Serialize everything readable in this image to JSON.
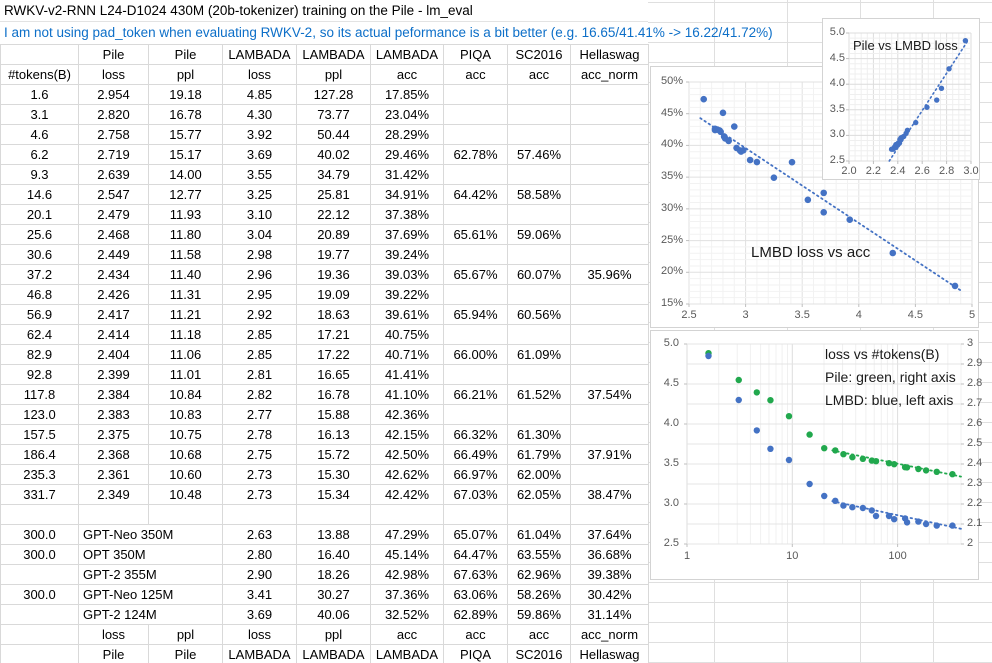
{
  "title": "RWKV-v2-RNN L24-D1024 430M (20b-tokenizer) training on the Pile - lm_eval",
  "note": "I am not using pad_token when evaluating RWKV-2, so its actual peformance is a bit better (e.g. 16.65/41.41% -> 16.22/41.72%)",
  "colors": {
    "note_blue": "#0d6fc8",
    "dot_blue": "#4472c4",
    "dot_green": "#21a84d",
    "cell_border": "#d9d9d9",
    "tick_text": "#595959"
  },
  "table": {
    "col_groups": [
      "",
      "Pile",
      "Pile",
      "LAMBADA",
      "LAMBADA",
      "LAMBADA",
      "PIQA",
      "SC2016",
      "Hellaswag"
    ],
    "col_subs": [
      "#tokens(B)",
      "loss",
      "ppl",
      "loss",
      "ppl",
      "acc",
      "acc",
      "acc",
      "acc_norm"
    ],
    "rows": [
      [
        "1.6",
        "2.954",
        "19.18",
        "4.85",
        "127.28",
        "17.85%",
        "",
        "",
        ""
      ],
      [
        "3.1",
        "2.820",
        "16.78",
        "4.30",
        "73.77",
        "23.04%",
        "",
        "",
        ""
      ],
      [
        "4.6",
        "2.758",
        "15.77",
        "3.92",
        "50.44",
        "28.29%",
        "",
        "",
        ""
      ],
      [
        "6.2",
        "2.719",
        "15.17",
        "3.69",
        "40.02",
        "29.46%",
        "62.78%",
        "57.46%",
        ""
      ],
      [
        "9.3",
        "2.639",
        "14.00",
        "3.55",
        "34.79",
        "31.42%",
        "",
        "",
        ""
      ],
      [
        "14.6",
        "2.547",
        "12.77",
        "3.25",
        "25.81",
        "34.91%",
        "64.42%",
        "58.58%",
        ""
      ],
      [
        "20.1",
        "2.479",
        "11.93",
        "3.10",
        "22.12",
        "37.38%",
        "",
        "",
        ""
      ],
      [
        "25.6",
        "2.468",
        "11.80",
        "3.04",
        "20.89",
        "37.69%",
        "65.61%",
        "59.06%",
        ""
      ],
      [
        "30.6",
        "2.449",
        "11.58",
        "2.98",
        "19.77",
        "39.24%",
        "",
        "",
        ""
      ],
      [
        "37.2",
        "2.434",
        "11.40",
        "2.96",
        "19.36",
        "39.03%",
        "65.67%",
        "60.07%",
        "35.96%"
      ],
      [
        "46.8",
        "2.426",
        "11.31",
        "2.95",
        "19.09",
        "39.22%",
        "",
        "",
        ""
      ],
      [
        "56.9",
        "2.417",
        "11.21",
        "2.92",
        "18.63",
        "39.61%",
        "65.94%",
        "60.56%",
        ""
      ],
      [
        "62.4",
        "2.414",
        "11.18",
        "2.85",
        "17.21",
        "40.75%",
        "",
        "",
        ""
      ],
      [
        "82.9",
        "2.404",
        "11.06",
        "2.85",
        "17.22",
        "40.71%",
        "66.00%",
        "61.09%",
        ""
      ],
      [
        "92.8",
        "2.399",
        "11.01",
        "2.81",
        "16.65",
        "41.41%",
        "",
        "",
        ""
      ],
      [
        "117.8",
        "2.384",
        "10.84",
        "2.82",
        "16.78",
        "41.10%",
        "66.21%",
        "61.52%",
        "37.54%"
      ],
      [
        "123.0",
        "2.383",
        "10.83",
        "2.77",
        "15.88",
        "42.36%",
        "",
        "",
        ""
      ],
      [
        "157.5",
        "2.375",
        "10.75",
        "2.78",
        "16.13",
        "42.15%",
        "66.32%",
        "61.30%",
        ""
      ],
      [
        "186.4",
        "2.368",
        "10.68",
        "2.75",
        "15.72",
        "42.50%",
        "66.49%",
        "61.79%",
        "37.91%"
      ],
      [
        "235.3",
        "2.361",
        "10.60",
        "2.73",
        "15.30",
        "42.62%",
        "66.97%",
        "62.00%",
        ""
      ],
      [
        "331.7",
        "2.349",
        "10.48",
        "2.73",
        "15.34",
        "42.42%",
        "67.03%",
        "62.05%",
        "38.47%"
      ]
    ],
    "baseline_rows": [
      {
        "tokens": "300.0",
        "name": "GPT-Neo 350M",
        "values": [
          "2.63",
          "13.88",
          "47.29%",
          "65.07%",
          "61.04%",
          "37.64%"
        ]
      },
      {
        "tokens": "300.0",
        "name": "OPT 350M",
        "values": [
          "2.80",
          "16.40",
          "45.14%",
          "64.47%",
          "63.55%",
          "36.68%"
        ]
      },
      {
        "tokens": "",
        "name": "GPT-2 355M",
        "values": [
          "2.90",
          "18.26",
          "42.98%",
          "67.63%",
          "62.96%",
          "39.38%"
        ]
      },
      {
        "tokens": "300.0",
        "name": "GPT-Neo 125M",
        "values": [
          "3.41",
          "30.27",
          "37.36%",
          "63.06%",
          "58.26%",
          "30.42%"
        ]
      },
      {
        "tokens": "",
        "name": "GPT-2 124M",
        "values": [
          "3.69",
          "40.06",
          "32.52%",
          "62.89%",
          "59.86%",
          "31.14%"
        ]
      }
    ],
    "footer_rows": [
      [
        "",
        "loss",
        "ppl",
        "loss",
        "ppl",
        "acc",
        "acc",
        "acc",
        "acc_norm"
      ],
      [
        "",
        "Pile",
        "Pile",
        "LAMBADA",
        "LAMBADA",
        "LAMBADA",
        "PIQA",
        "SC2016",
        "Hellaswag"
      ]
    ]
  },
  "chart_data": [
    {
      "id": "pile-vs-lmbd-loss",
      "type": "scatter",
      "title": "Pile vs LMBD loss",
      "xlim": [
        2.0,
        3.0
      ],
      "ylim": [
        2.5,
        5.0
      ],
      "xticks": [
        "2.0",
        "2.2",
        "2.4",
        "2.6",
        "2.8",
        "3.0"
      ],
      "yticks": [
        "5.0",
        "4.5",
        "4.0",
        "3.5",
        "3.0",
        "2.5"
      ],
      "dot_color": "#4472c4",
      "x": [
        2.954,
        2.82,
        2.758,
        2.719,
        2.639,
        2.547,
        2.479,
        2.468,
        2.449,
        2.434,
        2.426,
        2.417,
        2.414,
        2.404,
        2.399,
        2.384,
        2.383,
        2.375,
        2.368,
        2.361,
        2.349
      ],
      "y": [
        4.85,
        4.3,
        3.92,
        3.69,
        3.55,
        3.25,
        3.1,
        3.04,
        2.98,
        2.96,
        2.95,
        2.92,
        2.85,
        2.85,
        2.81,
        2.82,
        2.77,
        2.78,
        2.75,
        2.73,
        2.73
      ],
      "trend": [
        [
          2.33,
          2.5
        ],
        [
          2.98,
          4.87
        ]
      ]
    },
    {
      "id": "lmbd-loss-vs-acc",
      "type": "scatter",
      "title": "LMBD loss vs acc",
      "xlim": [
        2.5,
        5.0
      ],
      "ylim": [
        15,
        50
      ],
      "xticks": [
        "2.5",
        "3",
        "3.5",
        "4",
        "4.5",
        "5"
      ],
      "yticks": [
        "50%",
        "45%",
        "40%",
        "35%",
        "30%",
        "25%",
        "20%",
        "15%"
      ],
      "dot_color": "#4472c4",
      "x": [
        4.85,
        4.3,
        3.92,
        3.69,
        3.55,
        3.25,
        3.1,
        3.04,
        2.98,
        2.96,
        2.95,
        2.92,
        2.85,
        2.85,
        2.81,
        2.82,
        2.77,
        2.78,
        2.75,
        2.73,
        2.73,
        2.63,
        2.8,
        2.9,
        3.41,
        3.69
      ],
      "y": [
        17.85,
        23.04,
        28.29,
        29.46,
        31.42,
        34.91,
        37.38,
        37.69,
        39.24,
        39.03,
        39.22,
        39.61,
        40.75,
        40.71,
        41.41,
        41.1,
        42.36,
        42.15,
        42.5,
        42.62,
        42.42,
        47.29,
        45.14,
        42.98,
        37.36,
        32.52
      ],
      "trend": [
        [
          2.6,
          44.3
        ],
        [
          4.92,
          16.9
        ]
      ]
    },
    {
      "id": "loss-vs-tokens",
      "type": "scatter",
      "legend_lines": [
        "loss vs #tokens(B)",
        "Pile: green, right axis",
        "LMBD: blue, left axis"
      ],
      "x_log": true,
      "xlim": [
        1,
        400
      ],
      "xticks": [
        "1",
        "10",
        "100"
      ],
      "ylim_left": [
        2.5,
        5.0
      ],
      "ylim_right": [
        2.0,
        3.0
      ],
      "yticks_left": [
        "5.0",
        "4.5",
        "4.0",
        "3.5",
        "3.0",
        "2.5"
      ],
      "yticks_right": [
        "3",
        "2.9",
        "2.8",
        "2.7",
        "2.6",
        "2.5",
        "2.4",
        "2.3",
        "2.2",
        "2.1",
        "2"
      ],
      "x": [
        1.6,
        3.1,
        4.6,
        6.2,
        9.3,
        14.6,
        20.1,
        25.6,
        30.6,
        37.2,
        46.8,
        56.9,
        62.4,
        82.9,
        92.8,
        117.8,
        123.0,
        157.5,
        186.4,
        235.3,
        331.7
      ],
      "series": [
        {
          "name": "LMBD loss",
          "axis": "left",
          "color": "#4472c4",
          "y": [
            4.85,
            4.3,
            3.92,
            3.69,
            3.55,
            3.25,
            3.1,
            3.04,
            2.98,
            2.96,
            2.95,
            2.92,
            2.85,
            2.85,
            2.81,
            2.82,
            2.77,
            2.78,
            2.75,
            2.73,
            2.73
          ],
          "trend": [
            [
              24,
              3.035
            ],
            [
              400,
              2.69
            ]
          ]
        },
        {
          "name": "Pile loss",
          "axis": "right",
          "color": "#21a84d",
          "y": [
            2.954,
            2.82,
            2.758,
            2.719,
            2.639,
            2.547,
            2.479,
            2.468,
            2.449,
            2.434,
            2.426,
            2.417,
            2.414,
            2.404,
            2.399,
            2.384,
            2.383,
            2.375,
            2.368,
            2.361,
            2.349
          ],
          "trend": [
            [
              24,
              2.468
            ],
            [
              400,
              2.337
            ]
          ]
        }
      ]
    }
  ]
}
